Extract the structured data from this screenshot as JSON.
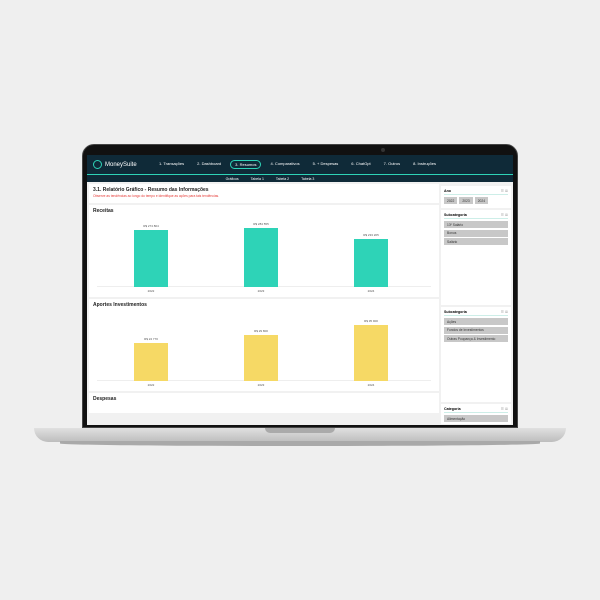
{
  "app": {
    "name": "MoneySuite"
  },
  "nav": [
    "1. Transações",
    "2. Dashboard",
    "3. Resumos",
    "4. Comparativos",
    "5. + Despesas",
    "6. ChatGpt",
    "7. Outros",
    "8. Instruções"
  ],
  "nav_active": 2,
  "subnav": [
    "Gráficos",
    "Tabela 1",
    "Tabela 2",
    "Tabela 3"
  ],
  "header": {
    "title": "3.1. Relatório Gráfico - Resumo das Informações",
    "subtitle": "Observe as tendências ao longo do tempo e identifique as ações para tais tendências."
  },
  "colors": {
    "receitas": "#2ed3b7",
    "aportes": "#f6d965",
    "nav": "#0f2a38"
  },
  "chart_data": [
    {
      "type": "bar",
      "title": "Receitas",
      "categories": [
        "2022",
        "2023",
        "2024"
      ],
      "values": [
        274804,
        284555,
        233205
      ],
      "labels": [
        "R$ 274 804",
        "R$ 284 555",
        "R$ 233 205"
      ]
    },
    {
      "type": "bar",
      "title": "Aportes Investimentos",
      "categories": [
        "2022",
        "2023",
        "2024"
      ],
      "values": [
        24770,
        29800,
        35900
      ],
      "labels": [
        "R$ 24 770",
        "R$ 29 800",
        "R$ 35 900"
      ]
    }
  ],
  "despesas": {
    "title": "Despesas"
  },
  "slicers": {
    "ano": {
      "title": "Ano",
      "items": [
        "2022",
        "2023",
        "2024"
      ]
    },
    "sub1": {
      "title": "Subcategoria",
      "items": [
        "13º Salário",
        "Bonus",
        "Salário"
      ]
    },
    "sub2": {
      "title": "Subcategoria",
      "items": [
        "Ações",
        "Fundos de Investimentos",
        "Outras Poupança & Investimento"
      ]
    },
    "cat": {
      "title": "Categoria",
      "items": [
        "Alimentação"
      ]
    }
  }
}
